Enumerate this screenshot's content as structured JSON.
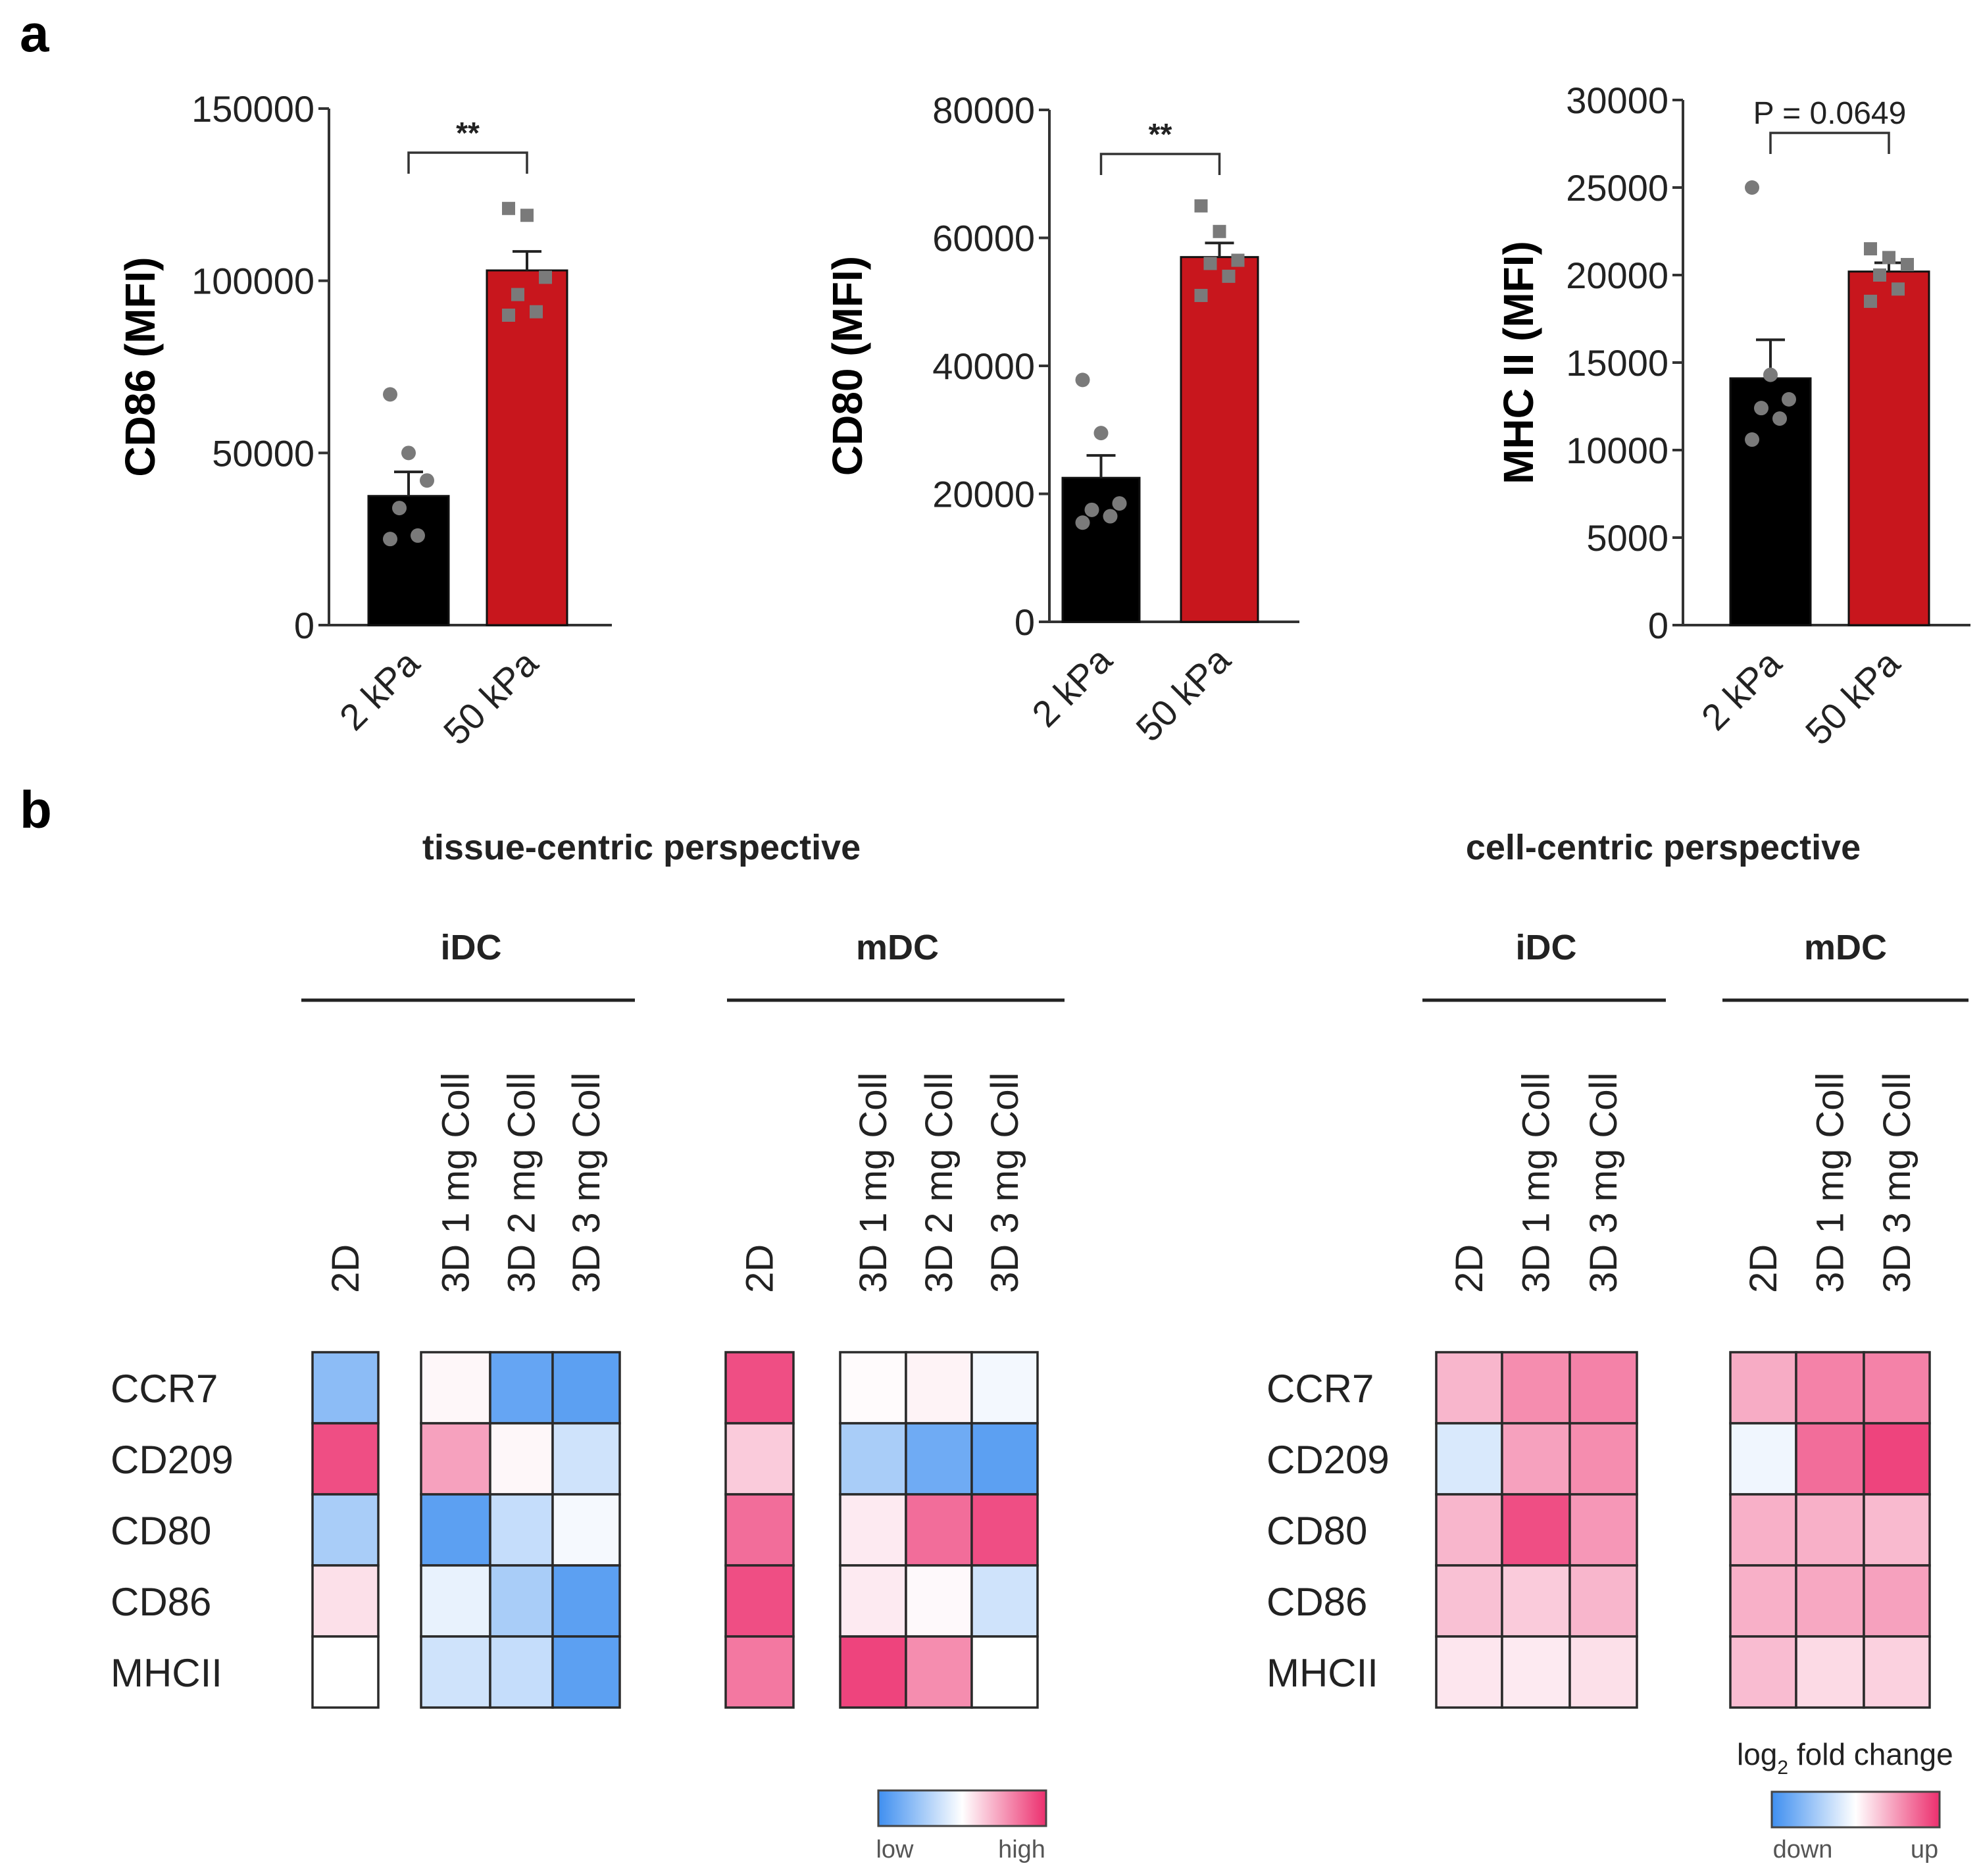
{
  "panels": {
    "a": "a",
    "b": "b"
  },
  "colors": {
    "black_bar": "#000000",
    "red_bar": "#c8161d",
    "dot": "#7a7a7a",
    "low": "#3f8ff0",
    "mid": "#ffffff",
    "high": "#ec2f6e"
  },
  "chart_data": [
    {
      "type": "bar",
      "ylabel": "CD86 (MFI)",
      "categories": [
        "2 kPa",
        "50 kPa"
      ],
      "values": [
        37500,
        103000
      ],
      "error": [
        7000,
        5500
      ],
      "ylim": [
        0,
        150000
      ],
      "yticks": [
        0,
        50000,
        100000,
        150000
      ],
      "ytick_labels": [
        "0",
        "50000",
        "100000",
        "150000"
      ],
      "points": [
        [
          67000,
          50000,
          42000,
          34000,
          26000,
          25000
        ],
        [
          121000,
          119000,
          101000,
          96000,
          91000,
          90000
        ]
      ],
      "significance": "**"
    },
    {
      "type": "bar",
      "ylabel": "CD80 (MFI)",
      "categories": [
        "2 kPa",
        "50 kPa"
      ],
      "values": [
        22500,
        57000
      ],
      "error": [
        3500,
        2200
      ],
      "ylim": [
        0,
        80000
      ],
      "yticks": [
        0,
        20000,
        40000,
        60000,
        80000
      ],
      "ytick_labels": [
        "0",
        "20000",
        "40000",
        "60000",
        "80000"
      ],
      "points": [
        [
          37800,
          29500,
          18500,
          17500,
          16500,
          15500
        ],
        [
          65000,
          61000,
          56500,
          56000,
          54000,
          51000
        ]
      ],
      "significance": "**"
    },
    {
      "type": "bar",
      "ylabel": "MHC II (MFI)",
      "categories": [
        "2 kPa",
        "50 kPa"
      ],
      "values": [
        14100,
        20200
      ],
      "error": [
        2200,
        500
      ],
      "ylim": [
        0,
        30000
      ],
      "yticks": [
        0,
        5000,
        10000,
        15000,
        20000,
        25000,
        30000
      ],
      "ytick_labels": [
        "0",
        "5000",
        "10000",
        "15000",
        "20000",
        "25000",
        "30000"
      ],
      "points": [
        [
          25000,
          14300,
          12900,
          12400,
          11800,
          10600
        ],
        [
          21500,
          21000,
          20600,
          20000,
          19200,
          18500
        ]
      ],
      "significance": "P = 0.0649"
    },
    {
      "type": "heatmap",
      "title": "tissue-centric perspective",
      "rows": [
        "CCR7",
        "CD209",
        "CD80",
        "CD86",
        "MHCII"
      ],
      "groups": [
        {
          "name": "iDC",
          "columns": [
            "2D",
            "3D 1 mg Coll",
            "3D 2 mg Coll",
            "3D 3 mg Coll"
          ],
          "values": [
            [
              -0.6,
              0.04,
              -0.8,
              -0.85
            ],
            [
              0.85,
              0.45,
              0.04,
              -0.25
            ],
            [
              -0.45,
              -0.85,
              -0.3,
              -0.05
            ],
            [
              0.15,
              -0.12,
              -0.45,
              -0.85
            ],
            [
              0.0,
              -0.25,
              -0.3,
              -0.85
            ]
          ]
        },
        {
          "name": "mDC",
          "columns": [
            "2D",
            "3D 1 mg Coll",
            "3D 2 mg Coll",
            "3D 3 mg Coll"
          ],
          "values": [
            [
              0.85,
              0.02,
              0.06,
              -0.06
            ],
            [
              0.25,
              -0.45,
              -0.75,
              -0.85
            ],
            [
              0.7,
              0.1,
              0.7,
              0.85
            ],
            [
              0.85,
              0.1,
              0.03,
              -0.25
            ],
            [
              0.65,
              0.9,
              0.55,
              0.0
            ]
          ]
        }
      ],
      "legend": {
        "low": "low",
        "high": "high"
      }
    },
    {
      "type": "heatmap",
      "title": "cell-centric perspective",
      "rows": [
        "CCR7",
        "CD209",
        "CD80",
        "CD86",
        "MHCII"
      ],
      "groups": [
        {
          "name": "iDC",
          "columns": [
            "2D",
            "3D 1 mg Coll",
            "3D 3 mg Coll"
          ],
          "values": [
            [
              0.35,
              0.55,
              0.6
            ],
            [
              -0.2,
              0.45,
              0.55
            ],
            [
              0.35,
              0.85,
              0.5
            ],
            [
              0.3,
              0.25,
              0.35
            ],
            [
              0.12,
              0.1,
              0.15
            ]
          ]
        },
        {
          "name": "mDC",
          "columns": [
            "2D",
            "3D 1 mg Coll",
            "3D 3 mg Coll"
          ],
          "values": [
            [
              0.4,
              0.6,
              0.6
            ],
            [
              -0.08,
              0.7,
              0.9
            ],
            [
              0.38,
              0.38,
              0.33
            ],
            [
              0.38,
              0.42,
              0.45
            ],
            [
              0.32,
              0.18,
              0.22
            ]
          ]
        }
      ],
      "legend": {
        "title_main": "log",
        "title_sub": "2",
        "title_rest": " fold change",
        "low": "down",
        "high": "up"
      }
    }
  ]
}
